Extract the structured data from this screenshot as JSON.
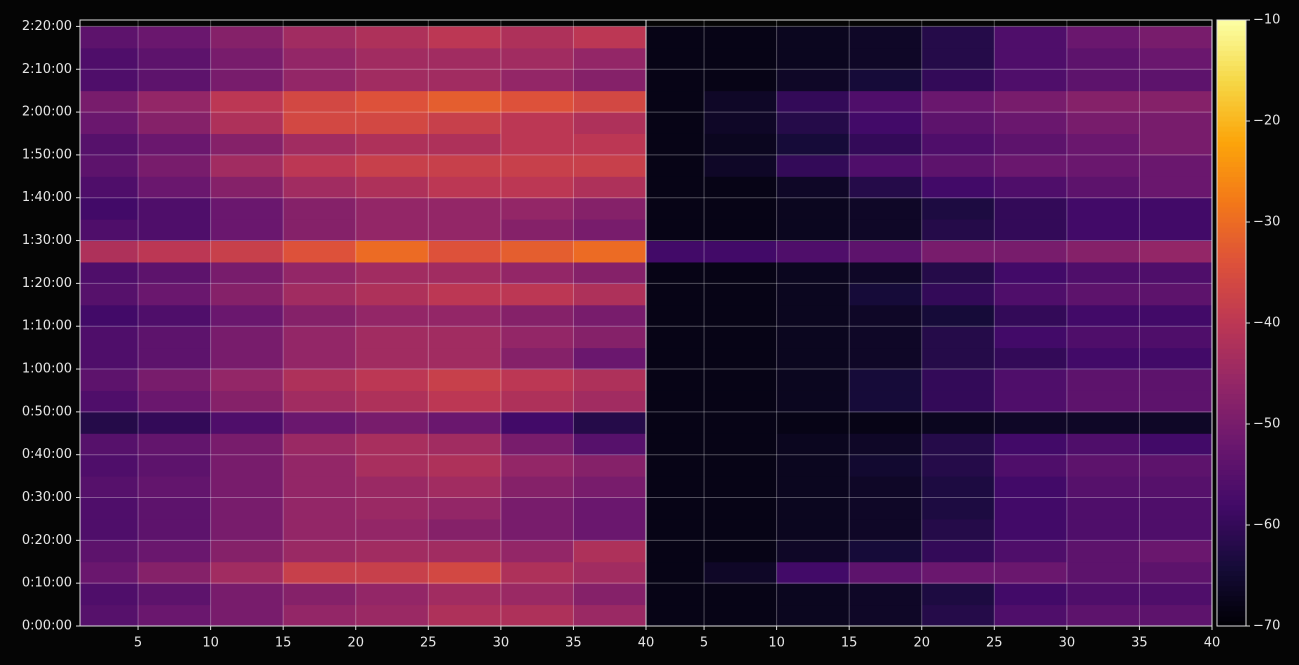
{
  "chart_data": [
    {
      "type": "heatmap",
      "colormap": "inferno",
      "grid": true,
      "xlim": [
        1,
        40
      ],
      "xticks": [
        5,
        10,
        15,
        20,
        25,
        30,
        35,
        40
      ],
      "ylim": [
        0,
        141.5
      ],
      "yticks": [
        {
          "value": 0,
          "label": "0:00:00"
        },
        {
          "value": 10,
          "label": "0:10:00"
        },
        {
          "value": 20,
          "label": "0:20:00"
        },
        {
          "value": 30,
          "label": "0:30:00"
        },
        {
          "value": 40,
          "label": "0:40:00"
        },
        {
          "value": 50,
          "label": "0:50:00"
        },
        {
          "value": 60,
          "label": "1:00:00"
        },
        {
          "value": 70,
          "label": "1:10:00"
        },
        {
          "value": 80,
          "label": "1:20:00"
        },
        {
          "value": 90,
          "label": "1:30:00"
        },
        {
          "value": 100,
          "label": "1:40:00"
        },
        {
          "value": 110,
          "label": "1:50:00"
        },
        {
          "value": 120,
          "label": "2:00:00"
        },
        {
          "value": 130,
          "label": "2:10:00"
        },
        {
          "value": 140,
          "label": "2:20:00"
        }
      ],
      "x_edges": [
        1,
        5,
        10,
        15,
        20,
        25,
        30,
        35,
        40
      ],
      "y_edges": [
        0,
        5,
        10,
        15,
        20,
        25,
        30,
        35,
        40,
        45,
        50,
        55,
        60,
        65,
        70,
        75,
        80,
        85,
        90,
        95,
        100,
        105,
        110,
        115,
        120,
        125,
        130,
        135,
        140
      ],
      "z": [
        [
          -55,
          -52,
          -50,
          -46,
          -45,
          -42,
          -42,
          -45
        ],
        [
          -56,
          -54,
          -50,
          -48,
          -46,
          -44,
          -45,
          -48
        ],
        [
          -52,
          -48,
          -44,
          -38,
          -38,
          -36,
          -42,
          -44
        ],
        [
          -54,
          -52,
          -48,
          -45,
          -44,
          -44,
          -46,
          -42
        ],
        [
          -56,
          -54,
          -50,
          -46,
          -46,
          -48,
          -50,
          -52
        ],
        [
          -56,
          -54,
          -50,
          -46,
          -45,
          -46,
          -50,
          -52
        ],
        [
          -55,
          -53,
          -50,
          -46,
          -45,
          -44,
          -48,
          -50
        ],
        [
          -56,
          -54,
          -50,
          -46,
          -43,
          -42,
          -46,
          -48
        ],
        [
          -55,
          -53,
          -50,
          -45,
          -43,
          -44,
          -50,
          -55
        ],
        [
          -62,
          -60,
          -56,
          -52,
          -50,
          -52,
          -58,
          -62
        ],
        [
          -56,
          -52,
          -48,
          -44,
          -42,
          -40,
          -42,
          -44
        ],
        [
          -54,
          -50,
          -46,
          -42,
          -40,
          -38,
          -40,
          -42
        ],
        [
          -56,
          -54,
          -50,
          -46,
          -44,
          -44,
          -48,
          -52
        ],
        [
          -56,
          -54,
          -50,
          -46,
          -44,
          -44,
          -46,
          -48
        ],
        [
          -58,
          -56,
          -52,
          -48,
          -46,
          -46,
          -48,
          -50
        ],
        [
          -55,
          -52,
          -48,
          -44,
          -42,
          -40,
          -40,
          -42
        ],
        [
          -56,
          -54,
          -50,
          -46,
          -44,
          -44,
          -46,
          -48
        ],
        [
          -42,
          -40,
          -38,
          -34,
          -30,
          -34,
          -32,
          -30
        ],
        [
          -56,
          -56,
          -52,
          -48,
          -46,
          -46,
          -48,
          -50
        ],
        [
          -58,
          -56,
          -52,
          -48,
          -46,
          -46,
          -46,
          -48
        ],
        [
          -56,
          -52,
          -48,
          -44,
          -42,
          -40,
          -40,
          -42
        ],
        [
          -54,
          -50,
          -44,
          -40,
          -38,
          -38,
          -38,
          -38
        ],
        [
          -55,
          -52,
          -48,
          -44,
          -42,
          -42,
          -40,
          -40
        ],
        [
          -52,
          -48,
          -42,
          -36,
          -36,
          -38,
          -40,
          -42
        ],
        [
          -50,
          -46,
          -40,
          -36,
          -34,
          -32,
          -34,
          -36
        ],
        [
          -56,
          -54,
          -50,
          -46,
          -44,
          -44,
          -46,
          -48
        ],
        [
          -56,
          -54,
          -50,
          -46,
          -44,
          -44,
          -44,
          -46
        ],
        [
          -54,
          -52,
          -48,
          -44,
          -42,
          -40,
          -42,
          -40
        ]
      ]
    },
    {
      "type": "heatmap",
      "colormap": "inferno",
      "grid": true,
      "xlim": [
        1,
        40
      ],
      "xticks": [
        5,
        10,
        15,
        20,
        25,
        30,
        35,
        40
      ],
      "ylim": [
        0,
        141.5
      ],
      "yticks": [
        0,
        10,
        20,
        30,
        40,
        50,
        60,
        70,
        80,
        90,
        100,
        110,
        120,
        130,
        140
      ],
      "x_edges": [
        1,
        5,
        10,
        15,
        20,
        25,
        30,
        35,
        40
      ],
      "y_edges": [
        0,
        5,
        10,
        15,
        20,
        25,
        30,
        35,
        40,
        45,
        50,
        55,
        60,
        65,
        70,
        75,
        80,
        85,
        90,
        95,
        100,
        105,
        110,
        115,
        120,
        125,
        130,
        135,
        140
      ],
      "z": [
        [
          -68,
          -68,
          -67,
          -66,
          -62,
          -56,
          -54,
          -54
        ],
        [
          -68,
          -68,
          -67,
          -66,
          -63,
          -58,
          -56,
          -56
        ],
        [
          -68,
          -66,
          -58,
          -54,
          -52,
          -52,
          -54,
          -54
        ],
        [
          -68,
          -68,
          -66,
          -64,
          -60,
          -56,
          -54,
          -52
        ],
        [
          -68,
          -68,
          -67,
          -66,
          -62,
          -58,
          -56,
          -56
        ],
        [
          -68,
          -68,
          -67,
          -66,
          -63,
          -58,
          -56,
          -56
        ],
        [
          -68,
          -68,
          -67,
          -66,
          -63,
          -58,
          -55,
          -55
        ],
        [
          -68,
          -68,
          -67,
          -65,
          -62,
          -56,
          -54,
          -54
        ],
        [
          -68,
          -68,
          -67,
          -66,
          -62,
          -58,
          -56,
          -58
        ],
        [
          -68,
          -68,
          -68,
          -68,
          -67,
          -66,
          -66,
          -66
        ],
        [
          -68,
          -68,
          -67,
          -64,
          -60,
          -56,
          -54,
          -54
        ],
        [
          -68,
          -68,
          -67,
          -64,
          -60,
          -56,
          -54,
          -54
        ],
        [
          -68,
          -68,
          -67,
          -66,
          -62,
          -60,
          -58,
          -58
        ],
        [
          -68,
          -68,
          -67,
          -66,
          -62,
          -58,
          -56,
          -56
        ],
        [
          -68,
          -68,
          -67,
          -66,
          -64,
          -60,
          -58,
          -58
        ],
        [
          -68,
          -68,
          -67,
          -64,
          -60,
          -56,
          -54,
          -54
        ],
        [
          -68,
          -68,
          -67,
          -66,
          -62,
          -58,
          -56,
          -56
        ],
        [
          -58,
          -58,
          -56,
          -54,
          -50,
          -50,
          -48,
          -46
        ],
        [
          -68,
          -68,
          -67,
          -66,
          -62,
          -60,
          -58,
          -58
        ],
        [
          -68,
          -68,
          -67,
          -66,
          -63,
          -60,
          -58,
          -58
        ],
        [
          -68,
          -68,
          -66,
          -62,
          -58,
          -56,
          -54,
          -52
        ],
        [
          -68,
          -66,
          -60,
          -56,
          -54,
          -52,
          -52,
          -52
        ],
        [
          -68,
          -67,
          -64,
          -60,
          -56,
          -54,
          -52,
          -50
        ],
        [
          -68,
          -66,
          -62,
          -58,
          -54,
          -52,
          -50,
          -50
        ],
        [
          -68,
          -66,
          -60,
          -56,
          -52,
          -50,
          -48,
          -48
        ],
        [
          -68,
          -68,
          -66,
          -64,
          -60,
          -56,
          -54,
          -54
        ],
        [
          -68,
          -68,
          -67,
          -66,
          -62,
          -56,
          -54,
          -52
        ],
        [
          -68,
          -68,
          -67,
          -66,
          -62,
          -56,
          -52,
          -50
        ]
      ]
    },
    {
      "type": "colorbar",
      "colormap": "inferno",
      "ylim": [
        -70,
        -10
      ],
      "yticks": [
        {
          "value": -10,
          "label": "−10"
        },
        {
          "value": -20,
          "label": "−20"
        },
        {
          "value": -30,
          "label": "−30"
        },
        {
          "value": -40,
          "label": "−40"
        },
        {
          "value": -50,
          "label": "−50"
        },
        {
          "value": -60,
          "label": "−60"
        },
        {
          "value": -70,
          "label": "−70"
        }
      ]
    }
  ]
}
